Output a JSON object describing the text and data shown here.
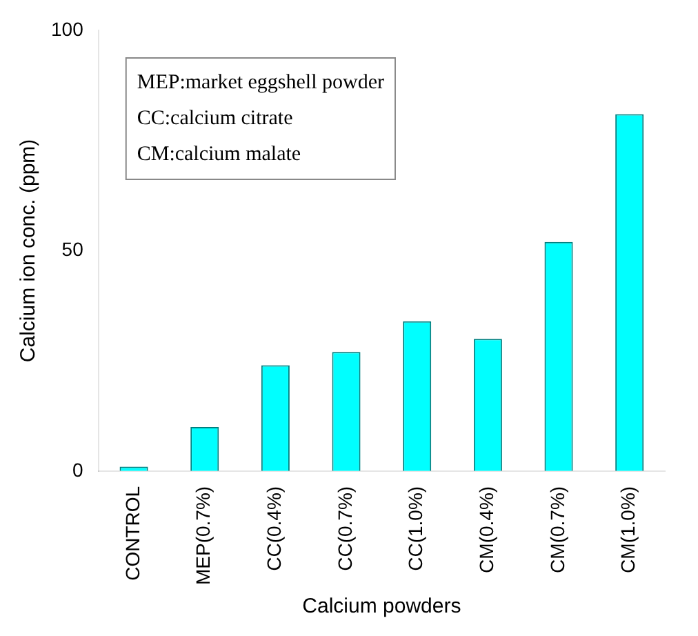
{
  "chart_data": {
    "type": "bar",
    "xlabel": "Calcium powders",
    "ylabel": "Calcium ion conc. (ppm)",
    "categories": [
      "CONTROL",
      "MEP(0.7%)",
      "CC(0.4%)",
      "CC(0.7%)",
      "CC(1.0%)",
      "CM(0.4%)",
      "CM(0.7%)",
      "CM(1.0%)"
    ],
    "values": [
      1,
      10,
      24,
      27,
      34,
      30,
      52,
      81
    ],
    "color": "#00ffff",
    "ylim": [
      0,
      100
    ],
    "yticks": [
      0,
      50,
      100
    ],
    "grid": false,
    "annotations": [
      "MEP:market eggshell powder",
      "CC:calcium citrate",
      "CM:calcium malate"
    ]
  }
}
